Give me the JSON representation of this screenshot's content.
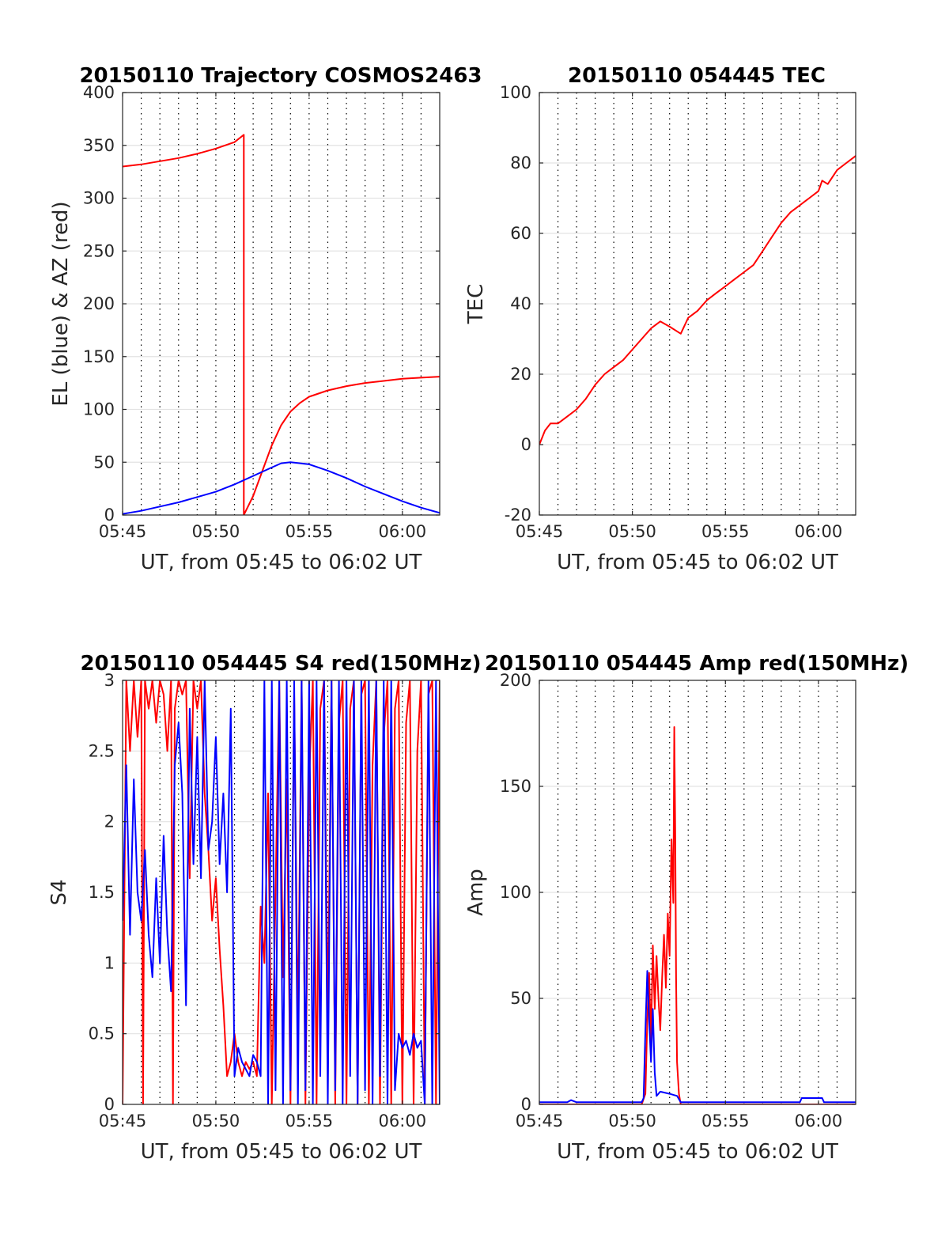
{
  "figure": {
    "background": "#ffffff"
  },
  "chart_data": [
    {
      "type": "line",
      "title": "20150110 Trajectory COSMOS2463",
      "xlabel": "UT, from 05:45 to 06:02 UT",
      "ylabel": "EL (blue) & AZ (red)",
      "xlim": [
        0,
        17
      ],
      "ylim": [
        0,
        400
      ],
      "x_ticks": [
        0,
        5,
        10,
        15
      ],
      "x_tick_labels": [
        "05:45",
        "05:50",
        "05:55",
        "06:00"
      ],
      "y_ticks": [
        0,
        50,
        100,
        150,
        200,
        250,
        300,
        350,
        400
      ],
      "y_tick_labels": [
        "0",
        "50",
        "100",
        "150",
        "200",
        "250",
        "300",
        "350",
        "400"
      ],
      "grid": true,
      "minute_gridlines": "dotted",
      "series": [
        {
          "color": "#ff0000",
          "x": [
            0,
            1,
            2,
            3,
            4,
            5,
            6,
            6.5,
            6.5,
            7,
            7.5,
            8,
            8.5,
            9,
            9.5,
            10,
            11,
            12,
            13,
            14,
            15,
            16,
            17
          ],
          "y": [
            330,
            332,
            335,
            338,
            342,
            347,
            353,
            360,
            0,
            18,
            42,
            66,
            85,
            98,
            106,
            112,
            118,
            122,
            125,
            127,
            129,
            130,
            131
          ]
        },
        {
          "color": "#0000ff",
          "x": [
            0,
            1,
            2,
            3,
            4,
            5,
            6,
            7,
            8,
            8.5,
            9,
            10,
            11,
            12,
            13,
            14,
            15,
            16,
            17
          ],
          "y": [
            1,
            4,
            8,
            12,
            17,
            22,
            29,
            37,
            45,
            49,
            50,
            48,
            42,
            35,
            27,
            20,
            13,
            7,
            2
          ]
        }
      ]
    },
    {
      "type": "line",
      "title": "20150110 054445 TEC",
      "xlabel": "UT, from 05:45 to 06:02 UT",
      "ylabel": "TEC",
      "xlim": [
        0,
        17
      ],
      "ylim": [
        -20,
        100
      ],
      "x_ticks": [
        0,
        5,
        10,
        15
      ],
      "x_tick_labels": [
        "05:45",
        "05:50",
        "05:55",
        "06:00"
      ],
      "y_ticks": [
        -20,
        0,
        20,
        40,
        60,
        80,
        100
      ],
      "y_tick_labels": [
        "-20",
        "0",
        "20",
        "40",
        "60",
        "80",
        "100"
      ],
      "grid": true,
      "minute_gridlines": "dotted",
      "series": [
        {
          "color": "#ff0000",
          "x": [
            0,
            0.3,
            0.6,
            1,
            1.5,
            2,
            2.5,
            3,
            3.5,
            4,
            4.5,
            5,
            5.5,
            6,
            6.5,
            7,
            7.6,
            8,
            8.5,
            9,
            9.5,
            10,
            10.5,
            11,
            11.5,
            12,
            12.5,
            13,
            13.5,
            14,
            14.5,
            15,
            15.2,
            15.5,
            16,
            16.5,
            17
          ],
          "y": [
            0,
            4,
            6,
            6,
            8,
            10,
            13,
            17,
            20,
            22,
            24,
            27,
            30,
            33,
            35,
            33.5,
            31.5,
            36,
            38,
            41,
            43,
            45,
            47,
            49,
            51,
            55,
            59,
            63,
            66,
            68,
            70,
            72,
            75,
            74,
            78,
            80,
            82
          ]
        }
      ]
    },
    {
      "type": "line",
      "title": "20150110 054445 S4 red(150MHz)",
      "xlabel": "UT, from 05:45 to 06:02 UT",
      "ylabel": "S4",
      "xlim": [
        0,
        17
      ],
      "ylim": [
        0,
        3
      ],
      "x_ticks": [
        0,
        5,
        10,
        15
      ],
      "x_tick_labels": [
        "05:45",
        "05:50",
        "05:55",
        "06:00"
      ],
      "y_ticks": [
        0,
        0.5,
        1,
        1.5,
        2,
        2.5,
        3
      ],
      "y_tick_labels": [
        "0",
        "0.5",
        "1",
        "1.5",
        "2",
        "2.5",
        "3"
      ],
      "grid": true,
      "minute_gridlines": "dotted",
      "series": [
        {
          "color": "#ff0000",
          "x": [
            0,
            0.2,
            0.4,
            0.6,
            0.8,
            1.0,
            1.1,
            1.2,
            1.4,
            1.6,
            1.8,
            2.0,
            2.2,
            2.4,
            2.6,
            2.7,
            2.8,
            3.0,
            3.2,
            3.4,
            3.6,
            3.8,
            4.0,
            4.2,
            4.4,
            4.6,
            4.8,
            5.0,
            5.2,
            5.4,
            5.6,
            5.8,
            6.0,
            6.2,
            6.4,
            6.6,
            6.8,
            7.0,
            7.2,
            7.4,
            7.6,
            7.8,
            8.0,
            8.2,
            8.4,
            8.6,
            8.8,
            9.0,
            9.2,
            9.4,
            9.6,
            9.8,
            10.0,
            10.2,
            10.4,
            10.6,
            10.8,
            11.0,
            11.2,
            11.4,
            11.6,
            11.8,
            12.0,
            12.2,
            12.4,
            12.6,
            12.8,
            13.0,
            13.2,
            13.4,
            13.6,
            13.8,
            14.0,
            14.2,
            14.4,
            14.6,
            14.8,
            15.0,
            15.2,
            15.4,
            15.6,
            15.8,
            16.0,
            16.2,
            16.4,
            16.6,
            16.8,
            17.0
          ],
          "y": [
            0,
            3,
            2.5,
            3,
            2.6,
            3,
            0,
            3,
            2.8,
            3,
            2.7,
            3,
            2.9,
            2.5,
            3,
            0,
            2.8,
            3,
            2.9,
            3,
            1.6,
            3,
            2.8,
            3,
            2.2,
            1.8,
            1.3,
            1.6,
            1.1,
            0.7,
            0.2,
            0.3,
            0.5,
            0.3,
            0.2,
            0.3,
            0.25,
            0.3,
            0.2,
            1.4,
            1.0,
            2.2,
            0,
            1.5,
            3,
            0.9,
            2.3,
            0,
            2.9,
            0.5,
            3,
            0,
            2.3,
            3,
            0,
            2.8,
            3,
            0.6,
            3,
            0,
            2.7,
            3,
            0,
            2.8,
            3,
            0,
            2.9,
            3,
            0,
            2.4,
            3,
            0,
            2.6,
            3,
            0,
            2.8,
            3,
            0,
            2.7,
            3,
            0,
            2.5,
            3,
            0,
            2.9,
            3,
            0,
            3
          ]
        },
        {
          "color": "#0000ff",
          "x": [
            0,
            0.2,
            0.4,
            0.6,
            0.8,
            1.0,
            1.2,
            1.4,
            1.6,
            1.8,
            2.0,
            2.2,
            2.4,
            2.6,
            2.8,
            3.0,
            3.2,
            3.4,
            3.6,
            3.8,
            4.0,
            4.2,
            4.4,
            4.6,
            4.8,
            5.0,
            5.2,
            5.4,
            5.6,
            5.8,
            6.0,
            6.2,
            6.4,
            6.6,
            6.8,
            7.0,
            7.2,
            7.4,
            7.6,
            7.8,
            8.0,
            8.2,
            8.4,
            8.6,
            8.8,
            9.0,
            9.2,
            9.4,
            9.6,
            9.8,
            10.0,
            10.2,
            10.4,
            10.6,
            10.8,
            11.0,
            11.2,
            11.4,
            11.6,
            11.8,
            12.0,
            12.2,
            12.4,
            12.6,
            12.8,
            13.0,
            13.2,
            13.4,
            13.6,
            13.8,
            14.0,
            14.2,
            14.4,
            14.6,
            14.8,
            15.0,
            15.2,
            15.4,
            15.6,
            15.8,
            16.0,
            16.2,
            16.4,
            16.6,
            16.8,
            17.0
          ],
          "y": [
            1.3,
            2.4,
            1.2,
            2.3,
            1.5,
            1.3,
            1.8,
            1.2,
            0.9,
            1.6,
            1.0,
            1.9,
            1.2,
            0.8,
            2.4,
            2.7,
            2.2,
            0.7,
            2.8,
            1.7,
            2.6,
            1.6,
            3.0,
            1.8,
            2.0,
            2.6,
            1.7,
            2.2,
            1.5,
            2.8,
            0.2,
            0.4,
            0.3,
            0.25,
            0.2,
            0.35,
            0.3,
            0.2,
            3.0,
            0,
            3.0,
            0.1,
            3.0,
            0,
            3.0,
            0.1,
            3.0,
            0,
            3.0,
            0.1,
            3.0,
            0,
            3.0,
            0.2,
            3.0,
            0,
            3.0,
            0.1,
            3.0,
            0,
            3.0,
            0.2,
            3.0,
            0,
            3.0,
            0.1,
            3.0,
            0,
            3.0,
            0.2,
            3.0,
            0,
            3.0,
            0.1,
            0.5,
            0.4,
            0.45,
            0.35,
            0.5,
            0.4,
            0.45,
            0,
            3.0,
            0,
            3.0,
            0
          ]
        }
      ]
    },
    {
      "type": "line",
      "title": "20150110 054445 Amp red(150MHz)",
      "xlabel": "UT, from 05:45 to 06:02 UT",
      "ylabel": "Amp",
      "xlim": [
        0,
        17
      ],
      "ylim": [
        0,
        200
      ],
      "x_ticks": [
        0,
        5,
        10,
        15
      ],
      "x_tick_labels": [
        "05:45",
        "05:50",
        "05:55",
        "06:00"
      ],
      "y_ticks": [
        0,
        50,
        100,
        150,
        200
      ],
      "y_tick_labels": [
        "0",
        "50",
        "100",
        "150",
        "200"
      ],
      "grid": true,
      "minute_gridlines": "dotted",
      "series": [
        {
          "color": "#ff0000",
          "x": [
            0,
            5.5,
            5.7,
            5.8,
            5.9,
            6.0,
            6.1,
            6.2,
            6.3,
            6.4,
            6.5,
            6.6,
            6.7,
            6.8,
            6.9,
            7.0,
            7.1,
            7.2,
            7.25,
            7.3,
            7.35,
            7.4,
            7.5,
            7.6,
            17
          ],
          "y": [
            0,
            0,
            5,
            40,
            62,
            30,
            75,
            45,
            70,
            50,
            35,
            60,
            80,
            55,
            90,
            70,
            125,
            95,
            178,
            130,
            60,
            20,
            5,
            0,
            0
          ]
        },
        {
          "color": "#0000ff",
          "x": [
            0,
            1.5,
            1.7,
            2.0,
            2.3,
            5.5,
            5.6,
            5.7,
            5.8,
            5.9,
            6.0,
            6.1,
            6.2,
            6.3,
            6.5,
            7.0,
            7.4,
            7.6,
            10,
            14,
            14.1,
            15.2,
            15.3,
            17
          ],
          "y": [
            1,
            1,
            2,
            1,
            1,
            1,
            3,
            35,
            63,
            40,
            20,
            45,
            15,
            4,
            6,
            5,
            4,
            1,
            1,
            1,
            3,
            3,
            1,
            1
          ]
        }
      ]
    }
  ]
}
